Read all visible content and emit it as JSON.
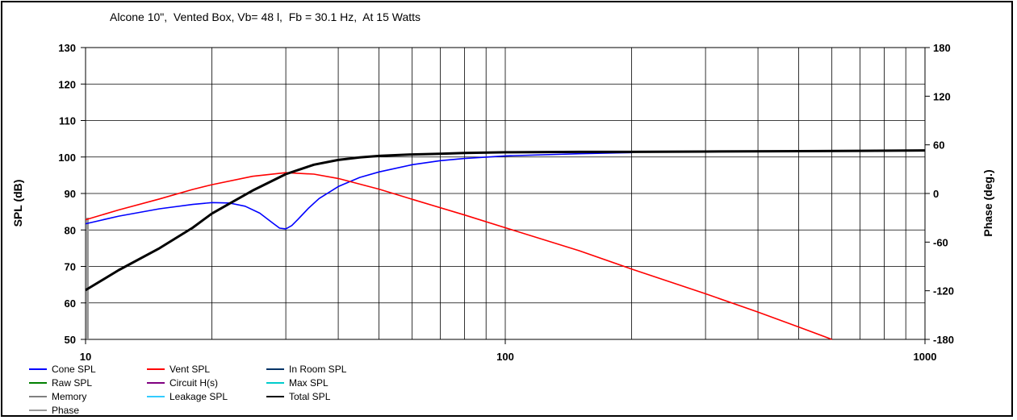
{
  "chart_data": {
    "type": "line",
    "title": "Alcone 10\",  Vented Box, Vb= 48 l,  Fb = 30.1 Hz,  At 15 Watts",
    "xlabel": "",
    "ylabel": "SPL (dB)",
    "y2label": "Phase (deg.)",
    "xscale": "log",
    "xlim": [
      10,
      1000
    ],
    "ylim": [
      50,
      130
    ],
    "y2lim": [
      -180,
      180
    ],
    "grid": true,
    "xticks": [
      "10",
      "100",
      "1000"
    ],
    "yticks": [
      "50",
      "60",
      "70",
      "80",
      "90",
      "100",
      "110",
      "120",
      "130"
    ],
    "y2ticks": [
      "-180",
      "-120",
      "-60",
      "0",
      "60",
      "120",
      "180"
    ],
    "legend_position": "bottom-left",
    "legend": [
      {
        "name": "Cone SPL",
        "color": "#0000ff"
      },
      {
        "name": "Vent SPL",
        "color": "#ff0000"
      },
      {
        "name": "In Room SPL",
        "color": "#003366"
      },
      {
        "name": "Raw SPL",
        "color": "#008000"
      },
      {
        "name": "Circuit H(s)",
        "color": "#800080"
      },
      {
        "name": "Max SPL",
        "color": "#00cccc"
      },
      {
        "name": "Memory",
        "color": "#808080"
      },
      {
        "name": "Leakage SPL",
        "color": "#33ccff"
      },
      {
        "name": "Total SPL",
        "color": "#000000"
      },
      {
        "name": "Phase",
        "color": "#999999"
      }
    ],
    "series": [
      {
        "name": "Cone SPL",
        "color": "#0000ff",
        "x": [
          10,
          12,
          15,
          18,
          20,
          22,
          24,
          26,
          28,
          29,
          30,
          31,
          32,
          34,
          36,
          40,
          45,
          50,
          60,
          70,
          80,
          100,
          150,
          200
        ],
        "y": [
          81.7,
          83.8,
          85.8,
          87.0,
          87.5,
          87.4,
          86.5,
          84.6,
          81.8,
          80.5,
          80.3,
          81.2,
          82.8,
          86.0,
          88.6,
          91.9,
          94.4,
          95.9,
          97.9,
          99.0,
          99.6,
          100.3,
          100.9,
          101.2
        ]
      },
      {
        "name": "Vent SPL",
        "color": "#ff0000",
        "x": [
          10,
          12,
          15,
          18,
          20,
          25,
          30,
          35,
          40,
          50,
          60,
          80,
          100,
          150,
          200,
          300,
          400,
          500,
          600
        ],
        "y": [
          82.8,
          85.5,
          88.5,
          91.1,
          92.4,
          94.7,
          95.7,
          95.3,
          94.1,
          91.2,
          88.4,
          84.1,
          80.6,
          74.3,
          69.3,
          62.5,
          57.5,
          53.4,
          50.0
        ]
      },
      {
        "name": "Total SPL",
        "color": "#000000",
        "x": [
          10,
          12,
          15,
          18,
          20,
          25,
          30,
          35,
          40,
          45,
          50,
          60,
          70,
          80,
          100,
          150,
          200,
          300,
          500,
          700,
          1000
        ],
        "y": [
          63.5,
          69.0,
          75.0,
          80.6,
          84.5,
          90.8,
          95.3,
          97.9,
          99.2,
          99.9,
          100.3,
          100.7,
          100.9,
          101.1,
          101.3,
          101.4,
          101.4,
          101.5,
          101.6,
          101.7,
          101.8
        ]
      }
    ]
  }
}
